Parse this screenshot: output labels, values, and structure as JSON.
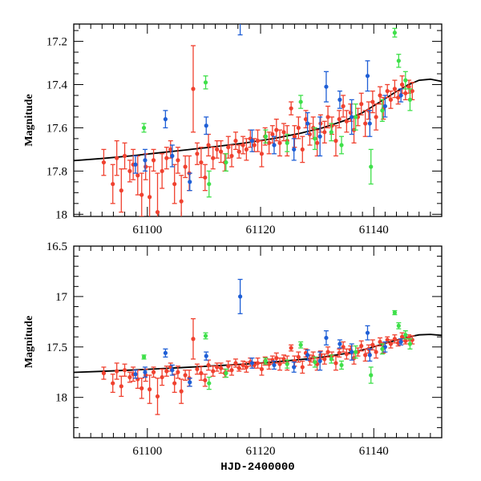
{
  "chart_data": [
    {
      "type": "scatter",
      "panel": "top",
      "xlim": [
        61087,
        61152
      ],
      "ylim": [
        18.01,
        17.12
      ],
      "y_inverted": true,
      "xticks": [
        61100,
        61120,
        61140
      ],
      "xtick_labels": [
        "61100",
        "61120",
        "61140"
      ],
      "yticks": [
        17.2,
        17.4,
        17.6,
        17.8,
        18.0
      ],
      "ytick_labels": [
        "17.2",
        "17.4",
        "17.6",
        "17.8",
        "18"
      ],
      "xlabel": "",
      "ylabel": "Magnitude",
      "show_xtick_labels": true
    },
    {
      "type": "scatter",
      "panel": "bottom",
      "xlim": [
        61087,
        61152
      ],
      "ylim": [
        18.4,
        16.5
      ],
      "y_inverted": true,
      "xticks": [
        61100,
        61120,
        61140
      ],
      "xtick_labels": [
        "61100",
        "61120",
        "61140"
      ],
      "yticks": [
        16.5,
        17.0,
        17.5,
        18.0
      ],
      "ytick_labels": [
        "16.5",
        "17",
        "17.5",
        "18"
      ],
      "xlabel": "HJD-2400000",
      "ylabel": "Magnitude",
      "show_xtick_labels": true
    }
  ],
  "series": [
    {
      "name": "red",
      "color": "#f0412f",
      "points": [
        [
          61092.3,
          17.76,
          0.06
        ],
        [
          61093.9,
          17.86,
          0.09
        ],
        [
          61094.6,
          17.74,
          0.08
        ],
        [
          61095.4,
          17.89,
          0.1
        ],
        [
          61096.0,
          17.73,
          0.06
        ],
        [
          61096.9,
          17.8,
          0.05
        ],
        [
          61097.5,
          17.77,
          0.07
        ],
        [
          61098.3,
          17.82,
          0.09
        ],
        [
          61099.0,
          17.91,
          0.1
        ],
        [
          61099.7,
          17.78,
          0.06
        ],
        [
          61100.4,
          17.92,
          0.14
        ],
        [
          61101.1,
          17.75,
          0.05
        ],
        [
          61101.8,
          17.99,
          0.18
        ],
        [
          61102.6,
          17.8,
          0.08
        ],
        [
          61103.4,
          17.74,
          0.05
        ],
        [
          61104.1,
          17.7,
          0.04
        ],
        [
          61104.8,
          17.86,
          0.09
        ],
        [
          61105.4,
          17.75,
          0.06
        ],
        [
          61106.0,
          17.94,
          0.12
        ],
        [
          61106.7,
          17.78,
          0.05
        ],
        [
          61107.4,
          17.81,
          0.08
        ],
        [
          61108.1,
          17.42,
          0.2
        ],
        [
          61108.8,
          17.72,
          0.05
        ],
        [
          61109.5,
          17.76,
          0.07
        ],
        [
          61110.2,
          17.83,
          0.06
        ],
        [
          61110.8,
          17.68,
          0.05
        ],
        [
          61111.6,
          17.74,
          0.05
        ],
        [
          61112.3,
          17.7,
          0.04
        ],
        [
          61113.0,
          17.71,
          0.05
        ],
        [
          61113.7,
          17.76,
          0.04
        ],
        [
          61114.3,
          17.69,
          0.05
        ],
        [
          61114.9,
          17.73,
          0.05
        ],
        [
          61115.6,
          17.66,
          0.04
        ],
        [
          61116.2,
          17.71,
          0.03
        ],
        [
          61116.9,
          17.68,
          0.04
        ],
        [
          61117.5,
          17.7,
          0.05
        ],
        [
          61118.2,
          17.65,
          0.04
        ],
        [
          61118.9,
          17.68,
          0.03
        ],
        [
          61119.5,
          17.66,
          0.05
        ],
        [
          61120.2,
          17.72,
          0.06
        ],
        [
          61120.8,
          17.64,
          0.04
        ],
        [
          61121.5,
          17.67,
          0.05
        ],
        [
          61122.1,
          17.63,
          0.04
        ],
        [
          61122.8,
          17.61,
          0.05
        ],
        [
          61123.4,
          17.67,
          0.06
        ],
        [
          61124.1,
          17.62,
          0.04
        ],
        [
          61124.7,
          17.66,
          0.07
        ],
        [
          61125.4,
          17.51,
          0.03
        ],
        [
          61126.0,
          17.64,
          0.05
        ],
        [
          61126.7,
          17.6,
          0.05
        ],
        [
          61127.4,
          17.7,
          0.06
        ],
        [
          61128.0,
          17.56,
          0.04
        ],
        [
          61128.7,
          17.63,
          0.05
        ],
        [
          61129.3,
          17.6,
          0.05
        ],
        [
          61130.0,
          17.67,
          0.06
        ],
        [
          61130.6,
          17.58,
          0.04
        ],
        [
          61131.3,
          17.62,
          0.05
        ],
        [
          61131.9,
          17.55,
          0.05
        ],
        [
          61132.6,
          17.59,
          0.04
        ],
        [
          61133.3,
          17.66,
          0.07
        ],
        [
          61133.9,
          17.56,
          0.04
        ],
        [
          61134.6,
          17.5,
          0.05
        ],
        [
          61135.2,
          17.57,
          0.05
        ],
        [
          61135.9,
          17.53,
          0.04
        ],
        [
          61136.5,
          17.61,
          0.06
        ],
        [
          61137.2,
          17.55,
          0.04
        ],
        [
          61137.8,
          17.49,
          0.05
        ],
        [
          61138.5,
          17.58,
          0.06
        ],
        [
          61139.1,
          17.52,
          0.04
        ],
        [
          61139.8,
          17.48,
          0.05
        ],
        [
          61140.4,
          17.55,
          0.06
        ],
        [
          61141.1,
          17.45,
          0.04
        ],
        [
          61141.7,
          17.51,
          0.05
        ],
        [
          61142.4,
          17.43,
          0.03
        ],
        [
          61143.0,
          17.47,
          0.04
        ],
        [
          61143.7,
          17.42,
          0.04
        ],
        [
          61144.3,
          17.46,
          0.03
        ],
        [
          61145.0,
          17.4,
          0.04
        ],
        [
          61145.6,
          17.44,
          0.03
        ],
        [
          61146.2,
          17.41,
          0.03
        ],
        [
          61146.8,
          17.43,
          0.04
        ]
      ]
    },
    {
      "name": "blue",
      "color": "#1f5fd6",
      "points": [
        [
          61097.9,
          17.77,
          0.04
        ],
        [
          61099.6,
          17.75,
          0.05
        ],
        [
          61103.2,
          17.56,
          0.04
        ],
        [
          61104.4,
          17.73,
          0.05
        ],
        [
          61107.5,
          17.85,
          0.04
        ],
        [
          61110.4,
          17.59,
          0.04
        ],
        [
          61116.4,
          17.0,
          0.17
        ],
        [
          61118.5,
          17.66,
          0.05
        ],
        [
          61122.4,
          17.68,
          0.04
        ],
        [
          61125.9,
          17.7,
          0.05
        ],
        [
          61128.3,
          17.58,
          0.05
        ],
        [
          61130.5,
          17.64,
          0.09
        ],
        [
          61131.6,
          17.41,
          0.07
        ],
        [
          61134.0,
          17.47,
          0.04
        ],
        [
          61136.1,
          17.55,
          0.08
        ],
        [
          61138.9,
          17.36,
          0.07
        ],
        [
          61139.3,
          17.58,
          0.06
        ],
        [
          61142.0,
          17.5,
          0.05
        ],
        [
          61144.8,
          17.45,
          0.03
        ]
      ]
    },
    {
      "name": "green",
      "color": "#3fe04a",
      "points": [
        [
          61099.4,
          17.6,
          0.02
        ],
        [
          61110.3,
          17.39,
          0.03
        ],
        [
          61110.9,
          17.86,
          0.06
        ],
        [
          61113.9,
          17.76,
          0.04
        ],
        [
          61120.9,
          17.64,
          0.03
        ],
        [
          61124.7,
          17.67,
          0.04
        ],
        [
          61127.1,
          17.48,
          0.03
        ],
        [
          61129.6,
          17.65,
          0.05
        ],
        [
          61132.5,
          17.62,
          0.04
        ],
        [
          61134.3,
          17.68,
          0.04
        ],
        [
          61136.8,
          17.55,
          0.06
        ],
        [
          61139.5,
          17.78,
          0.08
        ],
        [
          61141.5,
          17.52,
          0.05
        ],
        [
          61143.7,
          17.16,
          0.02
        ],
        [
          61144.4,
          17.29,
          0.03
        ],
        [
          61145.6,
          17.38,
          0.04
        ],
        [
          61146.4,
          17.47,
          0.05
        ]
      ]
    }
  ],
  "model_curve": {
    "name": "model",
    "color": "#000000",
    "points": [
      [
        61087,
        17.752
      ],
      [
        61092,
        17.742
      ],
      [
        61097,
        17.73
      ],
      [
        61102,
        17.716
      ],
      [
        61107,
        17.702
      ],
      [
        61112,
        17.687
      ],
      [
        61117,
        17.671
      ],
      [
        61122,
        17.651
      ],
      [
        61127,
        17.625
      ],
      [
        61131,
        17.6
      ],
      [
        61135,
        17.565
      ],
      [
        61138,
        17.53
      ],
      [
        61141,
        17.482
      ],
      [
        61144,
        17.432
      ],
      [
        61146,
        17.402
      ],
      [
        61148,
        17.38
      ],
      [
        61150,
        17.375
      ],
      [
        61152,
        17.385
      ]
    ]
  }
}
